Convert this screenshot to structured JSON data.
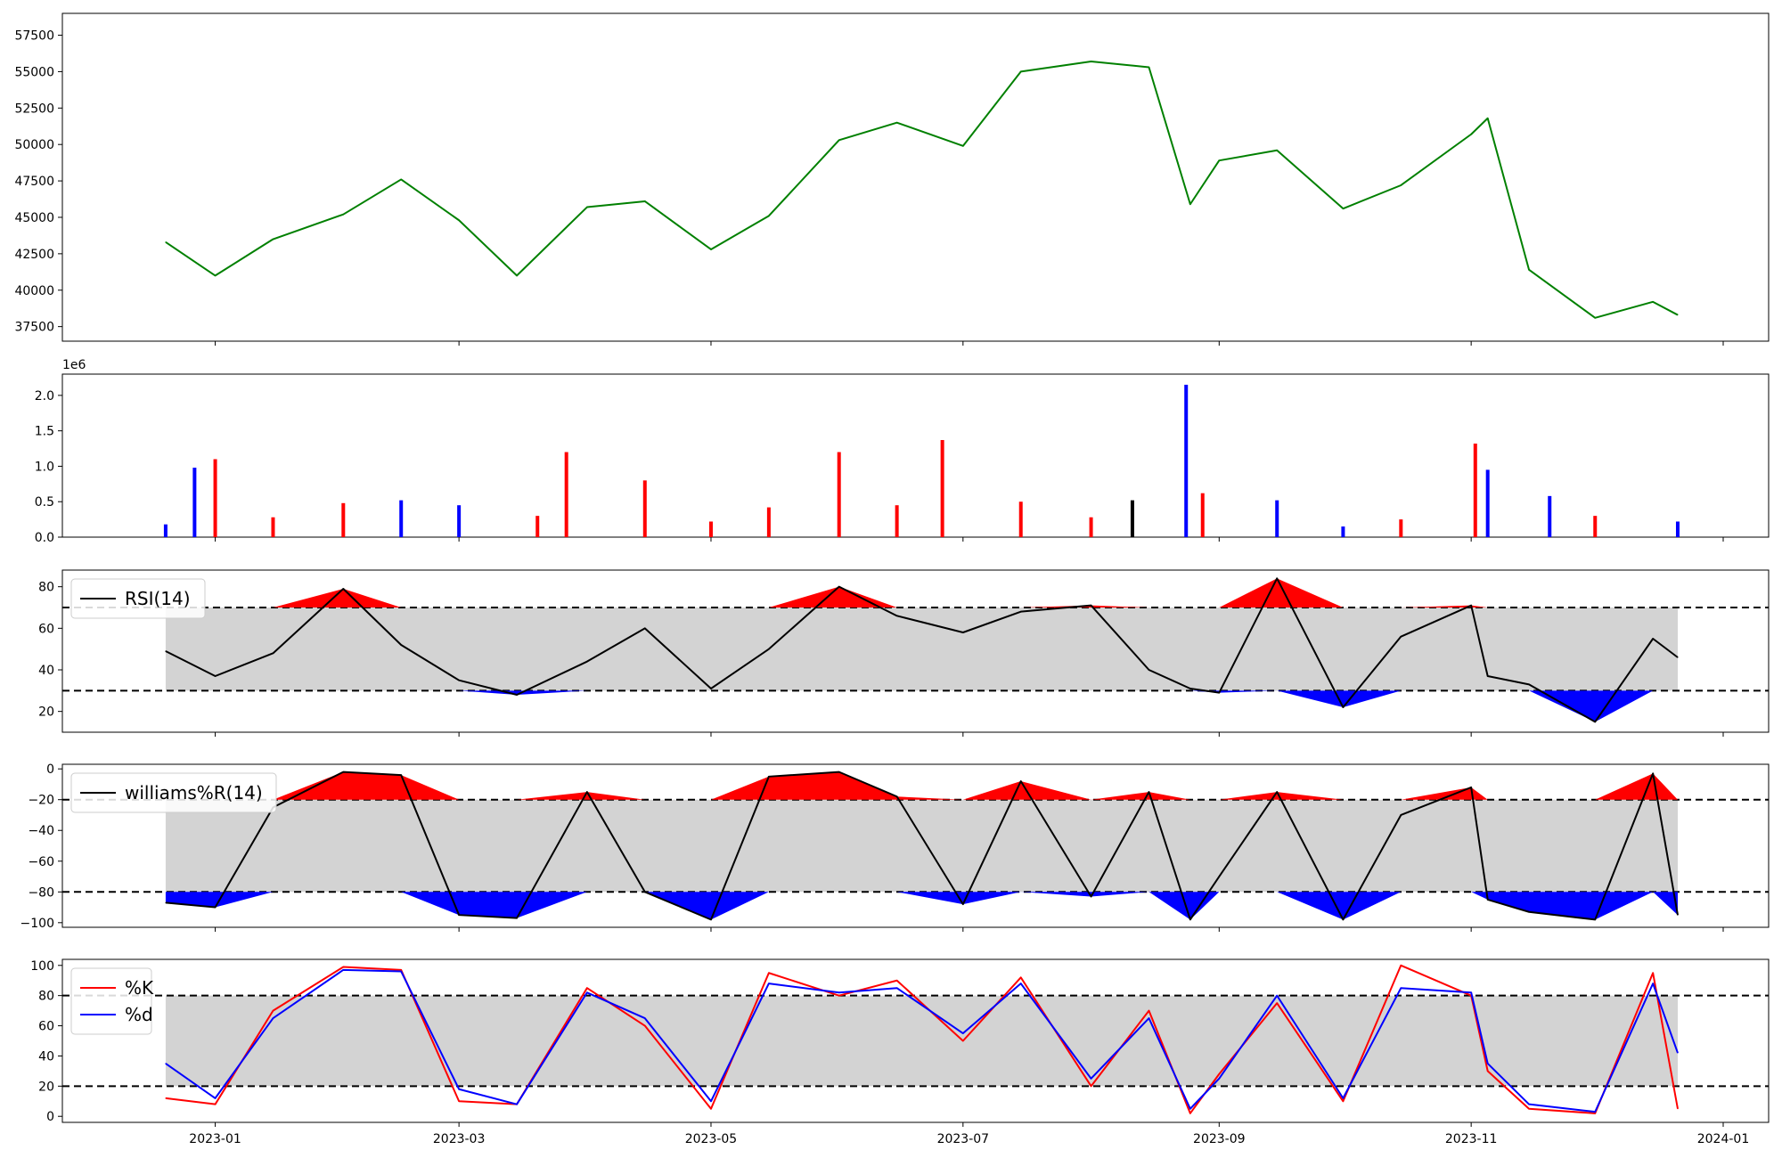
{
  "chart_data": [
    {
      "type": "line",
      "panel": "price",
      "color": "#008000",
      "ylim": [
        36500,
        59000
      ],
      "yticks": [
        "37500",
        "40000",
        "42500",
        "45000",
        "47500",
        "50000",
        "52500",
        "55000",
        "57500"
      ],
      "x": [
        "2022-12-20",
        "2023-01-01",
        "2023-01-15",
        "2023-02-01",
        "2023-02-15",
        "2023-03-01",
        "2023-03-15",
        "2023-04-01",
        "2023-04-15",
        "2023-05-01",
        "2023-05-15",
        "2023-06-01",
        "2023-06-15",
        "2023-07-01",
        "2023-07-15",
        "2023-08-01",
        "2023-08-15",
        "2023-08-25",
        "2023-09-01",
        "2023-09-15",
        "2023-10-01",
        "2023-10-15",
        "2023-11-01",
        "2023-11-05",
        "2023-11-15",
        "2023-12-01",
        "2023-12-15",
        "2023-12-21"
      ],
      "values": [
        43300,
        41000,
        43500,
        45200,
        47600,
        44800,
        41000,
        45700,
        46100,
        42800,
        45100,
        50300,
        51500,
        49900,
        55000,
        55700,
        55300,
        45900,
        48900,
        49600,
        45600,
        47200,
        50700,
        51800,
        41400,
        38100,
        39200,
        38300
      ]
    },
    {
      "type": "bar",
      "panel": "volume",
      "offset_label": "1e6",
      "ylim": [
        0,
        2.3
      ],
      "yticks": [
        "0.0",
        "0.5",
        "1.0",
        "1.5",
        "2.0"
      ],
      "colors": {
        "up": "#ff0000",
        "down": "#0000ff",
        "flat": "#000000"
      },
      "bars": [
        {
          "x": "2022-12-20",
          "value": 0.18,
          "c": "down"
        },
        {
          "x": "2022-12-27",
          "value": 0.98,
          "c": "down"
        },
        {
          "x": "2023-01-01",
          "value": 1.1,
          "c": "up"
        },
        {
          "x": "2023-01-15",
          "value": 0.28,
          "c": "up"
        },
        {
          "x": "2023-02-01",
          "value": 0.48,
          "c": "up"
        },
        {
          "x": "2023-02-15",
          "value": 0.52,
          "c": "down"
        },
        {
          "x": "2023-03-01",
          "value": 0.45,
          "c": "down"
        },
        {
          "x": "2023-03-20",
          "value": 0.3,
          "c": "up"
        },
        {
          "x": "2023-03-27",
          "value": 1.2,
          "c": "up"
        },
        {
          "x": "2023-04-15",
          "value": 0.8,
          "c": "up"
        },
        {
          "x": "2023-05-01",
          "value": 0.22,
          "c": "up"
        },
        {
          "x": "2023-05-15",
          "value": 0.42,
          "c": "up"
        },
        {
          "x": "2023-06-01",
          "value": 1.2,
          "c": "up"
        },
        {
          "x": "2023-06-15",
          "value": 0.45,
          "c": "up"
        },
        {
          "x": "2023-06-26",
          "value": 1.37,
          "c": "up"
        },
        {
          "x": "2023-07-15",
          "value": 0.5,
          "c": "up"
        },
        {
          "x": "2023-08-01",
          "value": 0.28,
          "c": "up"
        },
        {
          "x": "2023-08-11",
          "value": 0.52,
          "c": "flat"
        },
        {
          "x": "2023-08-24",
          "value": 2.15,
          "c": "down"
        },
        {
          "x": "2023-08-28",
          "value": 0.62,
          "c": "up"
        },
        {
          "x": "2023-09-15",
          "value": 0.52,
          "c": "down"
        },
        {
          "x": "2023-10-01",
          "value": 0.15,
          "c": "down"
        },
        {
          "x": "2023-10-15",
          "value": 0.25,
          "c": "up"
        },
        {
          "x": "2023-11-02",
          "value": 1.32,
          "c": "up"
        },
        {
          "x": "2023-11-05",
          "value": 0.95,
          "c": "down"
        },
        {
          "x": "2023-11-20",
          "value": 0.58,
          "c": "down"
        },
        {
          "x": "2023-12-01",
          "value": 0.3,
          "c": "up"
        },
        {
          "x": "2023-12-21",
          "value": 0.22,
          "c": "down"
        }
      ]
    },
    {
      "type": "line",
      "panel": "rsi",
      "legend": "RSI(14)",
      "ylim": [
        10,
        88
      ],
      "yticks": [
        "20",
        "40",
        "60",
        "80"
      ],
      "bands": [
        30,
        70
      ],
      "x": [
        "2022-12-20",
        "2023-01-01",
        "2023-01-15",
        "2023-02-01",
        "2023-02-15",
        "2023-03-01",
        "2023-03-15",
        "2023-04-01",
        "2023-04-15",
        "2023-05-01",
        "2023-05-15",
        "2023-06-01",
        "2023-06-15",
        "2023-07-01",
        "2023-07-15",
        "2023-08-01",
        "2023-08-15",
        "2023-08-25",
        "2023-09-01",
        "2023-09-15",
        "2023-10-01",
        "2023-10-15",
        "2023-11-01",
        "2023-11-05",
        "2023-11-15",
        "2023-12-01",
        "2023-12-15",
        "2023-12-21"
      ],
      "values": [
        49,
        37,
        48,
        79,
        52,
        35,
        28,
        44,
        60,
        31,
        50,
        80,
        66,
        58,
        68,
        71,
        40,
        31,
        29,
        84,
        22,
        56,
        71,
        37,
        33,
        15,
        55,
        46
      ]
    },
    {
      "type": "line",
      "panel": "williams",
      "legend": "williams%R(14)",
      "ylim": [
        -103,
        3
      ],
      "yticks": [
        "0",
        "−20",
        "−40",
        "−60",
        "−80",
        "−100"
      ],
      "bands": [
        -80,
        -20
      ],
      "x": [
        "2022-12-20",
        "2023-01-01",
        "2023-01-15",
        "2023-02-01",
        "2023-02-15",
        "2023-03-01",
        "2023-03-15",
        "2023-04-01",
        "2023-04-15",
        "2023-05-01",
        "2023-05-15",
        "2023-06-01",
        "2023-06-15",
        "2023-07-01",
        "2023-07-15",
        "2023-08-01",
        "2023-08-15",
        "2023-08-25",
        "2023-09-01",
        "2023-09-15",
        "2023-10-01",
        "2023-10-15",
        "2023-11-01",
        "2023-11-05",
        "2023-11-15",
        "2023-12-01",
        "2023-12-15",
        "2023-12-21"
      ],
      "values": [
        -87,
        -90,
        -25,
        -2,
        -4,
        -95,
        -97,
        -15,
        -80,
        -98,
        -5,
        -2,
        -18,
        -88,
        -8,
        -83,
        -15,
        -98,
        -70,
        -15,
        -98,
        -30,
        -12,
        -85,
        -93,
        -98,
        -3,
        -95
      ]
    },
    {
      "type": "line",
      "panel": "stochastic",
      "ylim": [
        -4,
        104
      ],
      "yticks": [
        "0",
        "20",
        "40",
        "60",
        "80",
        "100"
      ],
      "bands": [
        20,
        80
      ],
      "xticks": [
        "2023-01",
        "2023-03",
        "2023-05",
        "2023-07",
        "2023-09",
        "2023-11",
        "2024-01"
      ],
      "x": [
        "2022-12-20",
        "2023-01-01",
        "2023-01-15",
        "2023-02-01",
        "2023-02-15",
        "2023-03-01",
        "2023-03-15",
        "2023-04-01",
        "2023-04-15",
        "2023-05-01",
        "2023-05-15",
        "2023-06-01",
        "2023-06-15",
        "2023-07-01",
        "2023-07-15",
        "2023-08-01",
        "2023-08-15",
        "2023-08-25",
        "2023-09-01",
        "2023-09-15",
        "2023-10-01",
        "2023-10-15",
        "2023-11-01",
        "2023-11-05",
        "2023-11-15",
        "2023-12-01",
        "2023-12-15",
        "2023-12-21"
      ],
      "series": [
        {
          "name": "%K",
          "color": "#ff0000",
          "values": [
            12,
            8,
            70,
            99,
            97,
            10,
            8,
            85,
            60,
            5,
            95,
            80,
            90,
            50,
            92,
            20,
            70,
            2,
            28,
            75,
            10,
            100,
            80,
            30,
            5,
            2,
            95,
            5
          ]
        },
        {
          "name": "%d",
          "color": "#0000ff",
          "values": [
            35,
            12,
            65,
            97,
            96,
            18,
            8,
            82,
            65,
            10,
            88,
            82,
            85,
            55,
            88,
            25,
            65,
            5,
            25,
            80,
            12,
            85,
            82,
            35,
            8,
            3,
            88,
            42
          ]
        }
      ]
    }
  ]
}
